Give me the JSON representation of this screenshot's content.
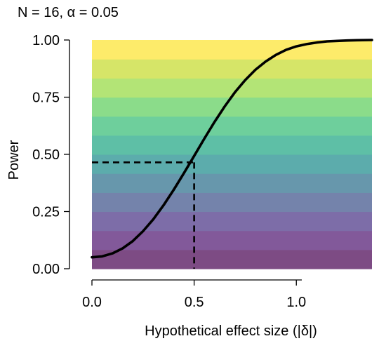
{
  "chart_data": {
    "type": "line",
    "title": "N = 16, α = 0.05",
    "xlabel": "Hypothetical effect size (|δ|)",
    "ylabel": "Power",
    "xlim": [
      0,
      1.37
    ],
    "ylim": [
      0,
      1
    ],
    "x_ticks": [
      0,
      0.5,
      1
    ],
    "x_tick_labels": [
      "0.0",
      "0.5",
      "1.0"
    ],
    "y_ticks": [
      0,
      0.25,
      0.5,
      0.75,
      1
    ],
    "y_tick_labels": [
      "0.00",
      "0.25",
      "0.50",
      "0.75",
      "1.00"
    ],
    "grid": false,
    "series": [
      {
        "color": "#000000",
        "x": [
          0,
          0.05,
          0.1,
          0.15,
          0.2,
          0.25,
          0.3,
          0.35,
          0.4,
          0.45,
          0.5,
          0.55,
          0.6,
          0.65,
          0.7,
          0.75,
          0.8,
          0.85,
          0.9,
          0.95,
          1.0,
          1.05,
          1.1,
          1.15,
          1.2,
          1.25,
          1.3,
          1.37
        ],
        "y": [
          0.05,
          0.054,
          0.067,
          0.089,
          0.121,
          0.164,
          0.216,
          0.277,
          0.345,
          0.418,
          0.493,
          0.569,
          0.642,
          0.71,
          0.772,
          0.825,
          0.87,
          0.906,
          0.935,
          0.957,
          0.972,
          0.982,
          0.989,
          0.994,
          0.996,
          0.998,
          0.999,
          1.0
        ]
      }
    ],
    "reference_point": {
      "x": 0.5,
      "y": 0.465
    },
    "background_bands": [
      "#7d4b84",
      "#82599a",
      "#7d6da8",
      "#7483ab",
      "#6797ac",
      "#5cacac",
      "#5ebfa6",
      "#6ecf9c",
      "#8bdc8a",
      "#b3e476",
      "#d6e568",
      "#fdeb6a"
    ]
  }
}
